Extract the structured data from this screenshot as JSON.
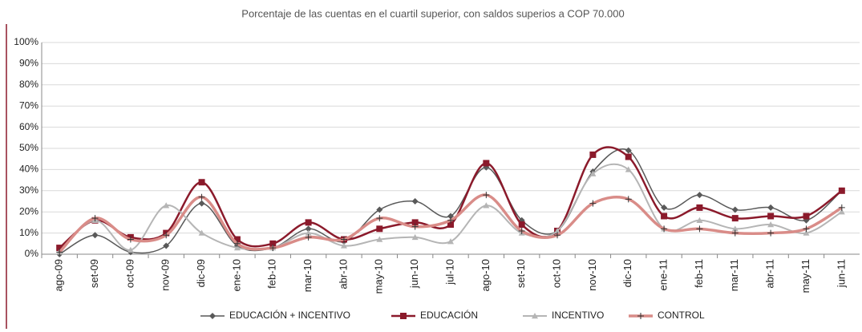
{
  "chart_data": {
    "type": "line",
    "title": "Porcentaje de las cuentas en el cuartil superior, con saldos superios a COP 70.000",
    "categories": [
      "ago-09",
      "set-09",
      "oct-09",
      "nov-09",
      "dic-09",
      "ene-10",
      "feb-10",
      "mar-10",
      "abr-10",
      "may-10",
      "jun-10",
      "jul-10",
      "ago-10",
      "set-10",
      "oct-10",
      "nov-10",
      "dic-10",
      "ene-11",
      "feb-11",
      "mar-11",
      "abr-11",
      "may-11",
      "jun-11"
    ],
    "series": [
      {
        "name": "EDUCACIÓN + INCENTIVO",
        "color": "#595959",
        "marker": "diamond",
        "values": [
          0,
          9,
          1,
          4,
          24,
          4,
          3,
          12,
          6,
          21,
          25,
          18,
          41,
          16,
          11,
          39,
          49,
          22,
          28,
          21,
          22,
          16,
          30
        ]
      },
      {
        "name": "EDUCACIÓN",
        "color": "#8b1a2b",
        "marker": "square",
        "values": [
          3,
          16,
          8,
          10,
          34,
          7,
          5,
          15,
          7,
          12,
          15,
          14,
          43,
          14,
          11,
          47,
          46,
          18,
          22,
          17,
          18,
          18,
          30
        ]
      },
      {
        "name": "INCENTIVO",
        "color": "#b5b5b5",
        "marker": "triangle",
        "values": [
          1,
          16,
          2,
          23,
          10,
          3,
          3,
          10,
          4,
          7,
          8,
          6,
          23,
          10,
          11,
          38,
          40,
          12,
          16,
          12,
          14,
          10,
          20
        ]
      },
      {
        "name": "CONTROL",
        "color": "#d98c88",
        "marker": "plus",
        "values": [
          1,
          17,
          7,
          9,
          27,
          5,
          3,
          8,
          7,
          17,
          13,
          16,
          28,
          11,
          9,
          24,
          26,
          12,
          12,
          10,
          10,
          12,
          22
        ]
      }
    ],
    "ylim": [
      0,
      100
    ],
    "yticks": [
      {
        "value": 0,
        "label": "0%"
      },
      {
        "value": 10,
        "label": "10%"
      },
      {
        "value": 20,
        "label": "20%"
      },
      {
        "value": 30,
        "label": "30%"
      },
      {
        "value": 40,
        "label": "40%"
      },
      {
        "value": 50,
        "label": "50%"
      },
      {
        "value": 60,
        "label": "60%"
      },
      {
        "value": 70,
        "label": "70%"
      },
      {
        "value": 80,
        "label": "80%"
      },
      {
        "value": 90,
        "label": "90%"
      },
      {
        "value": 100,
        "label": "100%"
      }
    ],
    "grid": true
  }
}
